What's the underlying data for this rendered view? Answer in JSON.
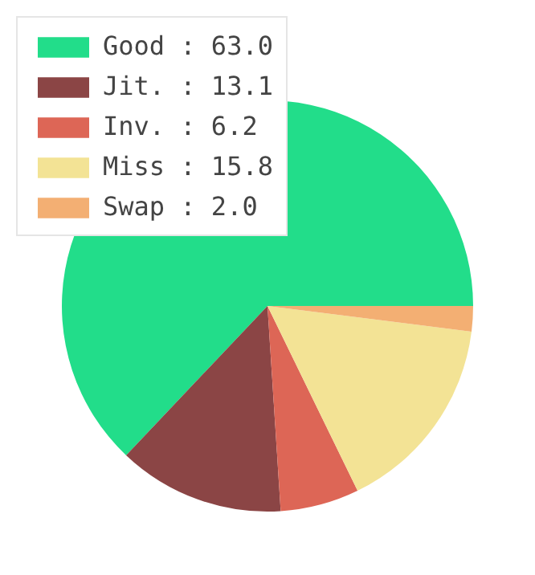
{
  "chart_data": {
    "type": "pie",
    "categories": [
      "Good : 63.0",
      "Jit. : 13.1",
      "Inv. : 6.2",
      "Miss : 15.8",
      "Swap : 2.0"
    ],
    "values": [
      63.0,
      13.1,
      6.2,
      15.8,
      2.0
    ],
    "colors": [
      "#22dd8a",
      "#8b4545",
      "#dd6656",
      "#f3e395",
      "#f3af73"
    ],
    "legend": "top left"
  }
}
